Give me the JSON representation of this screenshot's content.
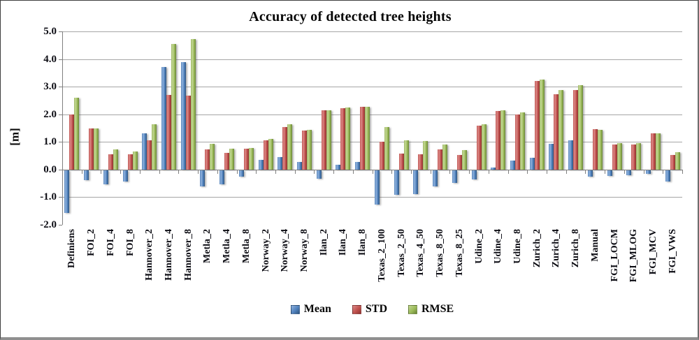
{
  "chart_data": {
    "type": "bar",
    "title": "Accuracy of detected tree heights",
    "ylabel": "[m]",
    "xlabel": "",
    "ylim": [
      -2.0,
      5.0
    ],
    "ytick_step": 1.0,
    "ytick_labels": [
      "5.0",
      "4.0",
      "3.0",
      "2.0",
      "1.0",
      "0.0",
      "-1.0",
      "-2.0"
    ],
    "grid": true,
    "legend_position": "bottom",
    "categories": [
      "Definiens",
      "FOI_2",
      "FOI_4",
      "FOI_8",
      "Hannover_2",
      "Hannover_4",
      "Hannover_8",
      "Metla_2",
      "Metla_4",
      "Metla_8",
      "Norway_2",
      "Norway_4",
      "Norway_8",
      "Ilan_2",
      "Ilan_4",
      "Ilan_8",
      "Texas_2_100",
      "Texas_2_50",
      "Texas_4_50",
      "Texas_8_50",
      "Texas_8_25",
      "Udine_2",
      "Udine_4",
      "Udine_8",
      "Zurich_2",
      "Zurich_4",
      "Zurich_8",
      "Manual",
      "FGI_LOCM",
      "FGI_MLOG",
      "FGI_MCV",
      "FGI_VWS"
    ],
    "series": [
      {
        "name": "Mean",
        "color": "#4F81BD",
        "values": [
          -1.55,
          -0.35,
          -0.5,
          -0.4,
          1.3,
          3.7,
          3.9,
          -0.58,
          -0.5,
          -0.23,
          0.35,
          0.45,
          0.28,
          -0.3,
          0.17,
          0.28,
          -1.23,
          -0.9,
          -0.87,
          -0.59,
          -0.46,
          -0.34,
          0.08,
          0.33,
          0.43,
          0.94,
          1.05,
          -0.23,
          -0.2,
          -0.18,
          -0.12,
          -0.41
        ]
      },
      {
        "name": "STD",
        "color": "#C0504D",
        "values": [
          2.0,
          1.5,
          0.55,
          0.55,
          1.05,
          2.7,
          2.67,
          0.73,
          0.6,
          0.75,
          1.05,
          1.55,
          1.42,
          2.14,
          2.22,
          2.26,
          1.0,
          0.57,
          0.55,
          0.73,
          0.52,
          1.6,
          2.13,
          2.0,
          3.2,
          2.72,
          2.87,
          1.47,
          0.92,
          0.92,
          1.32,
          0.52
        ]
      },
      {
        "name": "RMSE",
        "color": "#9BBB59",
        "values": [
          2.6,
          1.5,
          0.72,
          0.65,
          1.65,
          4.55,
          4.72,
          0.94,
          0.75,
          0.78,
          1.12,
          1.63,
          1.45,
          2.15,
          2.24,
          2.28,
          1.53,
          1.07,
          1.03,
          0.92,
          0.7,
          1.65,
          2.15,
          2.06,
          3.25,
          2.87,
          3.06,
          1.45,
          0.96,
          0.96,
          1.3,
          0.63
        ]
      }
    ]
  }
}
